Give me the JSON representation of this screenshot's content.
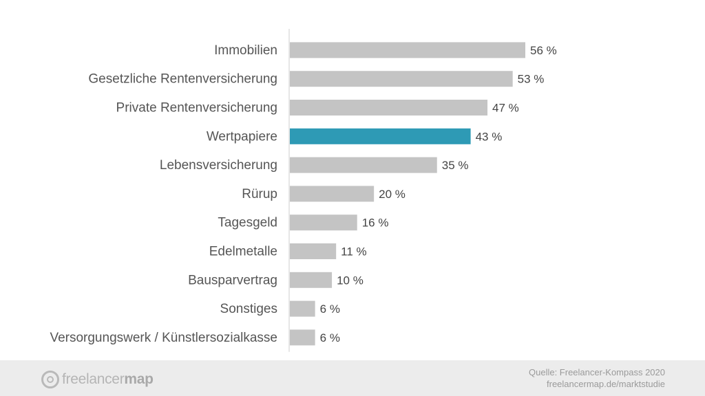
{
  "chart_data": {
    "type": "bar",
    "orientation": "horizontal",
    "categories": [
      "Immobilien",
      "Gesetzliche Rentenversicherung",
      "Private Rentenversicherung",
      "Wertpapiere",
      "Lebensversicherung",
      "Rürup",
      "Tagesgeld",
      "Edelmetalle",
      "Bausparvertrag",
      "Sonstiges",
      "Versorgungswerk / Künstlersozialkasse"
    ],
    "values": [
      56,
      53,
      47,
      43,
      35,
      20,
      16,
      11,
      10,
      6,
      6
    ],
    "value_labels": [
      "56 %",
      "53 %",
      "47 %",
      "43 %",
      "35 %",
      "20 %",
      "16 %",
      "11 %",
      "10 %",
      "6 %",
      "6 %"
    ],
    "highlight_category": "Wertpapiere",
    "xlim": [
      0,
      100
    ],
    "grid": false,
    "legend": "none"
  },
  "colors": {
    "bar": "#c4c4c4",
    "highlight": "#2e9ab5",
    "axis_line": "#cccccc"
  },
  "footer": {
    "logo_text_light": "freelancer",
    "logo_text_bold": "map",
    "source_line1": "Quelle: Freelancer-Kompass 2020",
    "source_line2": "freelancermap.de/marktstudie"
  }
}
